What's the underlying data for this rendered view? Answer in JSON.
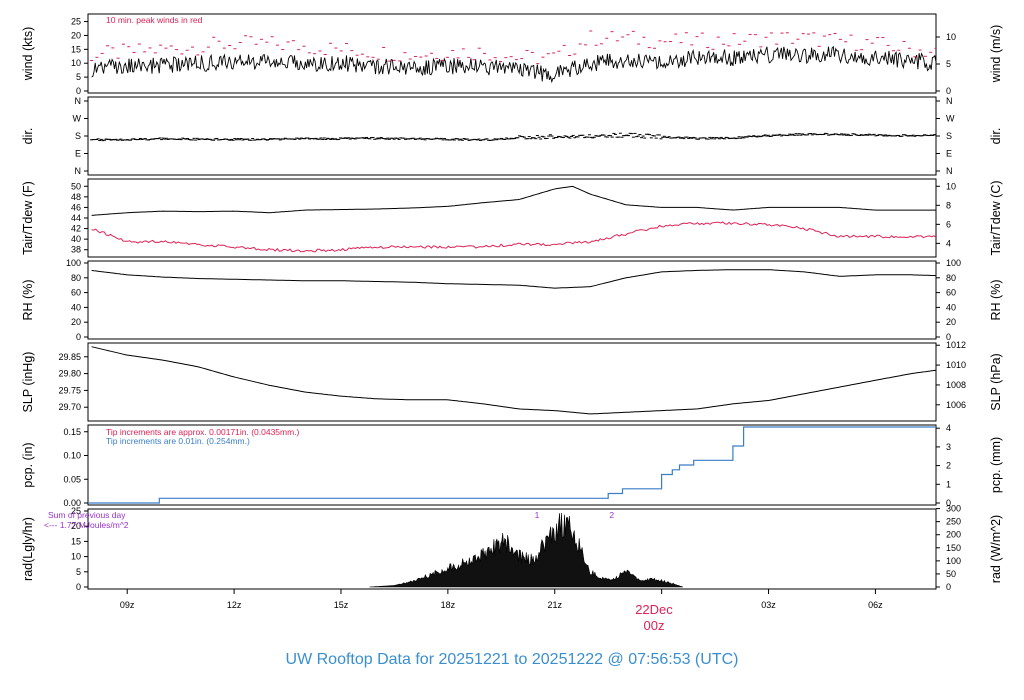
{
  "chart_data": {
    "type": "line",
    "title": "UW Rooftop Data for 20251221  to  20251222 @ 07:56:53  (UTC)",
    "x_ticks": [
      "09z",
      "12z",
      "15z",
      "18z",
      "21z",
      "00z",
      "03z",
      "06z"
    ],
    "date_marker": {
      "date": "22Dec",
      "hour": "00z"
    },
    "x_range_hours": [
      7.9,
      31.7
    ],
    "panels": [
      {
        "id": "wind",
        "ylabel_left": "wind (kts)",
        "ylabel_right": "wind (m/s)",
        "left_ticks": [
          0,
          5,
          10,
          15,
          20,
          25
        ],
        "right_ticks": [
          0,
          5,
          10
        ],
        "ylim": [
          0,
          27
        ],
        "annotation": "10 min. peak winds in red",
        "series": [
          {
            "color": "#000000",
            "x": [
              8,
              9,
              10,
              11,
              12,
              13,
              14,
              15,
              16,
              17,
              18,
              19,
              20,
              21,
              22,
              23,
              24,
              25,
              26,
              27,
              28,
              29,
              30,
              31,
              31.7
            ],
            "values": [
              8,
              9,
              9,
              10,
              10,
              11,
              10,
              10,
              9,
              8,
              9,
              9,
              7,
              6,
              10,
              11,
              11,
              12,
              12,
              13,
              13,
              13,
              12,
              11,
              10
            ]
          },
          {
            "color": "#dd2255",
            "x": [
              8,
              9,
              10,
              11,
              12,
              13,
              14,
              15,
              16,
              17,
              18,
              19,
              20,
              21,
              22,
              23,
              24,
              25,
              26,
              27,
              28,
              29,
              30,
              31,
              31.7
            ],
            "values": [
              13,
              14,
              15,
              16,
              17,
              17,
              16,
              15,
              14,
              13,
              14,
              14,
              12,
              12,
              19,
              19,
              18,
              18,
              18,
              19,
              19,
              18,
              17,
              15,
              14
            ]
          }
        ]
      },
      {
        "id": "dir",
        "ylabel_left": "dir.",
        "ylabel_right": "dir.",
        "left_ticks": [
          "N",
          "E",
          "S",
          "W",
          "N"
        ],
        "right_ticks": [
          "N",
          "E",
          "S",
          "W",
          "N"
        ],
        "series": [
          {
            "color": "#000000",
            "x": [
              8,
              10,
              12,
              14,
              16,
              18,
              19,
              20,
              21,
              22,
              23,
              24,
              25,
              26,
              27,
              28,
              29,
              30,
              31,
              31.7
            ],
            "values": [
              160,
              165,
              162,
              165,
              168,
              164,
              160,
              170,
              178,
              180,
              185,
              175,
              168,
              170,
              182,
              190,
              188,
              185,
              182,
              185
            ]
          }
        ]
      },
      {
        "id": "temp",
        "ylabel_left": "Tair/Tdew (F)",
        "ylabel_right": "Tair/Tdew (C)",
        "left_ticks": [
          38,
          40,
          42,
          44,
          46,
          48,
          50
        ],
        "right_ticks": [
          4,
          6,
          8,
          10
        ],
        "ylim": [
          37,
          51
        ],
        "series": [
          {
            "color": "#000000",
            "x": [
              8,
              9,
              10,
              11,
              12,
              13,
              14,
              15,
              16,
              17,
              18,
              19,
              20,
              20.5,
              21,
              21.5,
              22,
              23,
              24,
              25,
              26,
              27,
              28,
              29,
              30,
              31,
              31.7
            ],
            "values": [
              44.5,
              45,
              45.3,
              45.2,
              45.3,
              45,
              45.5,
              45.6,
              45.7,
              45.9,
              46.2,
              46.9,
              47.5,
              48.5,
              49.5,
              50,
              48.5,
              46.5,
              46,
              46,
              45.5,
              46,
              46,
              46,
              45.5,
              45.5,
              45.5
            ]
          },
          {
            "color": "#dd2255",
            "x": [
              8,
              9,
              10,
              11,
              12,
              13,
              14,
              15,
              16,
              17,
              18,
              19,
              20,
              21,
              22,
              23,
              24,
              25,
              26,
              27,
              28,
              29,
              30,
              31,
              31.7
            ],
            "values": [
              42,
              39.5,
              39.5,
              39,
              38.5,
              38,
              37.8,
              38,
              38.5,
              38.5,
              38.5,
              38.6,
              39,
              39,
              39.5,
              41,
              42.5,
              43,
              43,
              42.8,
              42,
              40.5,
              40.5,
              40.5,
              40.5
            ]
          }
        ]
      },
      {
        "id": "rh",
        "ylabel_left": "RH (%)",
        "ylabel_right": "RH (%)",
        "left_ticks": [
          0,
          20,
          40,
          60,
          80,
          100
        ],
        "right_ticks": [
          0,
          20,
          40,
          60,
          80,
          100
        ],
        "ylim": [
          0,
          100
        ],
        "series": [
          {
            "color": "#000000",
            "x": [
              8,
              9,
              10,
              11,
              12,
              13,
              14,
              15,
              16,
              17,
              18,
              19,
              20,
              21,
              22,
              23,
              24,
              25,
              26,
              27,
              28,
              29,
              30,
              31,
              31.7
            ],
            "values": [
              90,
              84,
              81,
              79,
              78,
              77,
              76,
              76,
              75,
              74,
              72,
              71,
              70,
              66,
              68,
              80,
              88,
              90,
              91,
              91,
              88,
              82,
              84,
              84,
              83
            ]
          }
        ]
      },
      {
        "id": "slp",
        "ylabel_left": "SLP (inHg)",
        "ylabel_right": "SLP (hPa)",
        "left_ticks": [
          29.7,
          29.75,
          29.8,
          29.85
        ],
        "right_ticks": [
          1006,
          1008,
          1010,
          1012
        ],
        "ylim": [
          29.665,
          29.885
        ],
        "series": [
          {
            "color": "#000000",
            "x": [
              8,
              9,
              10,
              11,
              12,
              13,
              14,
              15,
              16,
              17,
              18,
              19,
              20,
              21,
              22,
              23,
              24,
              25,
              26,
              27,
              28,
              29,
              30,
              31,
              31.7
            ],
            "values": [
              29.88,
              29.855,
              29.84,
              29.82,
              29.79,
              29.765,
              29.745,
              29.733,
              29.725,
              29.722,
              29.722,
              29.71,
              29.695,
              29.69,
              29.68,
              29.685,
              29.69,
              29.695,
              29.71,
              29.72,
              29.74,
              29.76,
              29.78,
              29.8,
              29.81
            ]
          }
        ]
      },
      {
        "id": "pcp",
        "ylabel_left": "pcp. (in)",
        "ylabel_right": "pcp. (mm)",
        "left_ticks": [
          0,
          0.05,
          0.1,
          0.15
        ],
        "right_ticks": [
          0,
          1,
          2,
          3,
          4
        ],
        "ylim": [
          0,
          0.16
        ],
        "notes": [
          {
            "text": "Tip increments are approx. 0.00171in. (0.0435mm.)",
            "color": "#dd2255"
          },
          {
            "text": "Tip increments are 0.01in. (0.254mm.)",
            "color": "#3a7ec8"
          }
        ],
        "series": [
          {
            "color": "#3a7ec8",
            "x": [
              7.9,
              9.9,
              9.9,
              22.5,
              22.5,
              22.9,
              22.9,
              24.0,
              24.0,
              24.3,
              24.3,
              24.5,
              24.5,
              24.9,
              24.9,
              26.0,
              26.0,
              26.3,
              26.3,
              27.3,
              27.3,
              31.7
            ],
            "values": [
              0,
              0,
              0.01,
              0.01,
              0.02,
              0.02,
              0.03,
              0.03,
              0.06,
              0.06,
              0.07,
              0.07,
              0.08,
              0.08,
              0.09,
              0.09,
              0.12,
              0.12,
              0.16,
              0.16,
              0.16,
              0.16
            ]
          }
        ]
      },
      {
        "id": "rad",
        "ylabel_left": "rad(Lgly/hr)",
        "ylabel_right": "rad (W/m^2)",
        "left_ticks": [
          0,
          5,
          10,
          15,
          20,
          25
        ],
        "right_ticks": [
          0,
          50,
          100,
          150,
          200,
          250,
          300
        ],
        "ylim": [
          0,
          25
        ],
        "notes": [
          {
            "text": "Sum of previous day",
            "color": "#9933cc"
          },
          {
            "text": "<--- 1.77 MJoules/m^2",
            "color": "#9933cc"
          }
        ],
        "markers": [
          {
            "x": 20.5,
            "label": "1"
          },
          {
            "x": 22.6,
            "label": "2"
          }
        ],
        "series": [
          {
            "color": "#000000",
            "x": [
              15.8,
              16.5,
              17.0,
              17.5,
              18.0,
              18.5,
              19.0,
              19.3,
              19.6,
              20.0,
              20.4,
              20.8,
              21.0,
              21.3,
              21.6,
              22.0,
              22.3,
              22.6,
              23.0,
              23.4,
              23.8,
              24.2,
              24.6
            ],
            "values": [
              0,
              0.5,
              2,
              4,
              6,
              8,
              11,
              13,
              15,
              10,
              9,
              16,
              19,
              21,
              16,
              5,
              3,
              2.5,
              5,
              2,
              2.5,
              1.5,
              0
            ]
          }
        ]
      }
    ]
  }
}
